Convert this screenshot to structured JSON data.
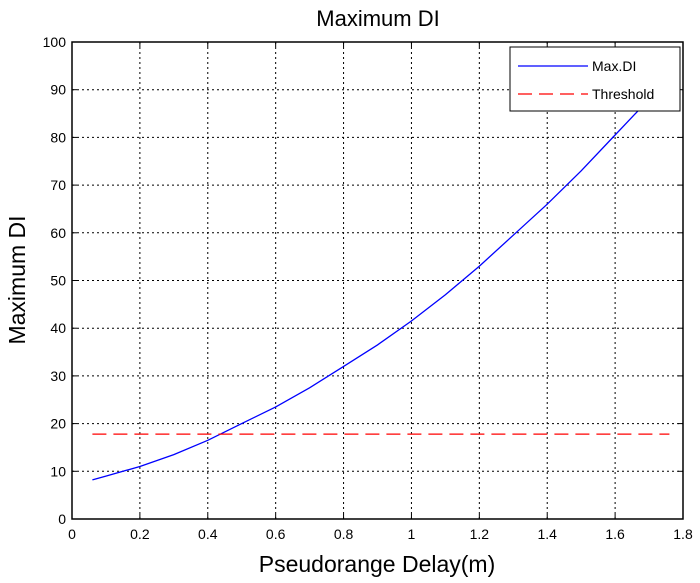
{
  "chart_data": {
    "type": "line",
    "title": "Maximum DI",
    "xlabel": "Pseudorange Delay(m)",
    "ylabel": "Maximum DI",
    "xlim": [
      0,
      1.8
    ],
    "ylim": [
      0,
      100
    ],
    "xticks": [
      "0",
      "0.2",
      "0.4",
      "0.6",
      "0.8",
      "1",
      "1.2",
      "1.4",
      "1.6",
      "1.8"
    ],
    "yticks": [
      "0",
      "10",
      "20",
      "30",
      "40",
      "50",
      "60",
      "70",
      "80",
      "90",
      "100"
    ],
    "grid": true,
    "grid_style": "dotted",
    "legend_position": "top-right",
    "series": [
      {
        "name": "Max.DI",
        "color": "#0000ff",
        "style": "solid",
        "x": [
          0.06,
          0.1,
          0.2,
          0.3,
          0.4,
          0.5,
          0.6,
          0.7,
          0.8,
          0.9,
          1.0,
          1.1,
          1.2,
          1.3,
          1.4,
          1.5,
          1.6,
          1.7,
          1.73
        ],
        "y": [
          8.2,
          9.0,
          11.0,
          13.5,
          16.5,
          20.0,
          23.5,
          27.5,
          32.0,
          36.5,
          41.5,
          47.0,
          53.0,
          59.5,
          66.0,
          73.0,
          80.5,
          88.0,
          90.5
        ]
      },
      {
        "name": "Threshold",
        "color": "#ff0000",
        "style": "dashed",
        "x": [
          0.06,
          1.76
        ],
        "y": [
          17.8,
          17.8
        ]
      }
    ]
  }
}
